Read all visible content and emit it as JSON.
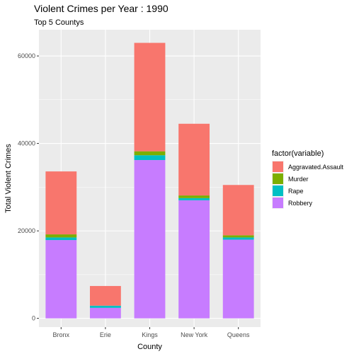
{
  "chart_data": {
    "type": "bar",
    "stacked": true,
    "title": "Violent Crimes per Year : 1990",
    "subtitle": "Top 5 Countys",
    "xlabel": "County",
    "ylabel": "Total Violent Crimes",
    "categories": [
      "Bronx",
      "Erie",
      "Kings",
      "New York",
      "Queens"
    ],
    "ylim": [
      -2000,
      66000
    ],
    "yticks": [
      0,
      20000,
      40000,
      60000
    ],
    "ytick_labels": [
      "0",
      "20000",
      "40000",
      "60000"
    ],
    "grid": true,
    "legend_title": "factor(variable)",
    "legend_position": "right",
    "series": [
      {
        "name": "Robbery",
        "color": "#C77CFF",
        "values": [
          17900,
          2400,
          36200,
          27000,
          18000
        ]
      },
      {
        "name": "Rape",
        "color": "#00BFC4",
        "values": [
          600,
          500,
          1100,
          500,
          500
        ]
      },
      {
        "name": "Murder",
        "color": "#7CAE00",
        "values": [
          700,
          0,
          900,
          600,
          500
        ]
      },
      {
        "name": "Aggravated.Assault",
        "color": "#F8766D",
        "values": [
          14400,
          4500,
          24800,
          16400,
          11500
        ]
      }
    ],
    "legend_order": [
      "Aggravated.Assault",
      "Murder",
      "Rape",
      "Robbery"
    ]
  }
}
